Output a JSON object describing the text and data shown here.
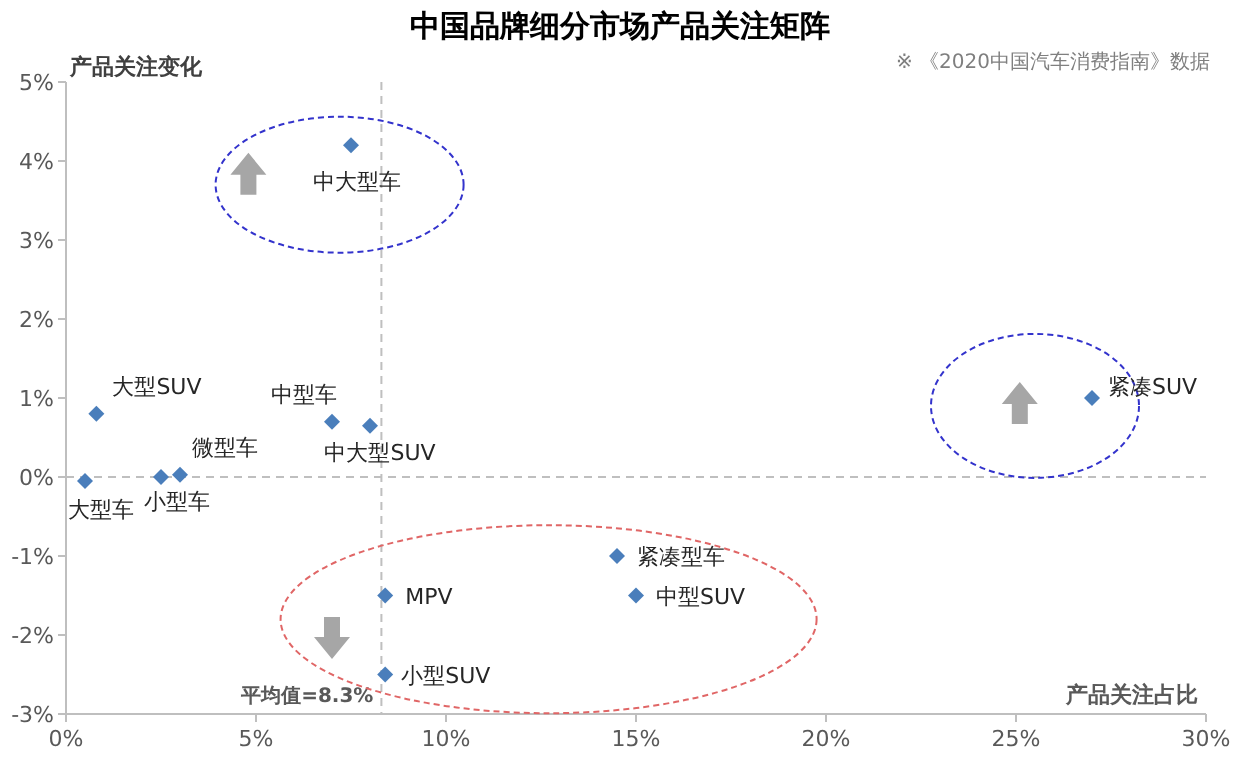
{
  "chart_data": {
    "type": "scatter",
    "title": "中国品牌细分市场产品关注矩阵",
    "xlabel": "产品关注占比",
    "ylabel": "产品关注变化",
    "x": [
      0.8,
      0.5,
      2.5,
      3.0,
      7.5,
      7.0,
      8.0,
      27.0,
      14.5,
      8.4,
      15.0,
      8.4
    ],
    "values": [
      0.8,
      -0.05,
      0,
      0.03,
      4.2,
      0.7,
      0.65,
      1.0,
      -1.0,
      -1.5,
      -1.5,
      -2.5
    ],
    "color": "#4a7ebb",
    "marker": "diamond",
    "xlim": [
      0,
      30
    ],
    "ylim": [
      -3,
      5
    ],
    "xticks": [
      {
        "value": 0,
        "label": "0%"
      },
      {
        "value": 5,
        "label": "5%"
      },
      {
        "value": 10,
        "label": "10%"
      },
      {
        "value": 15,
        "label": "15%"
      },
      {
        "value": 20,
        "label": "20%"
      },
      {
        "value": 25,
        "label": "25%"
      },
      {
        "value": 30,
        "label": "30%"
      }
    ],
    "yticks": [
      {
        "value": -3,
        "label": "-3%"
      },
      {
        "value": -2,
        "label": "-2%"
      },
      {
        "value": -1,
        "label": "-1%"
      },
      {
        "value": 0,
        "label": "0%"
      },
      {
        "value": 1,
        "label": "1%"
      },
      {
        "value": 2,
        "label": "2%"
      },
      {
        "value": 3,
        "label": "3%"
      },
      {
        "value": 4,
        "label": "4%"
      },
      {
        "value": 5,
        "label": "5%"
      }
    ],
    "ref_lines": [
      {
        "axis": "x",
        "value": 8.3,
        "label": "平均值=8.3%",
        "color": "#bfbfbf",
        "line_style": "dashed"
      },
      {
        "axis": "y",
        "value": 0,
        "color": "#bfbfbf",
        "line_style": "dashed"
      }
    ],
    "annotations": [
      "※ 《2020中国汽车消费指南》数据",
      {
        "text": "大型SUV",
        "x": 0.8,
        "y": 0.8
      },
      {
        "text": "大型车",
        "x": 0.5,
        "y": -0.05
      },
      {
        "text": "小型车",
        "x": 2.5,
        "y": 0
      },
      {
        "text": "微型车",
        "x": 3.0,
        "y": 0.03
      },
      {
        "text": "中大型车",
        "x": 7.5,
        "y": 4.2
      },
      {
        "text": "中型车",
        "x": 7.0,
        "y": 0.7
      },
      {
        "text": "中大型SUV",
        "x": 8.0,
        "y": 0.65
      },
      {
        "text": "紧凑SUV",
        "x": 27.0,
        "y": 1.0
      },
      {
        "text": "紧凑型车",
        "x": 14.5,
        "y": -1.0
      },
      {
        "text": "MPV",
        "x": 8.4,
        "y": -1.5
      },
      {
        "text": "中型SUV",
        "x": 15.0,
        "y": -1.5
      },
      {
        "text": "小型SUV",
        "x": 8.4,
        "y": -2.5
      }
    ]
  }
}
